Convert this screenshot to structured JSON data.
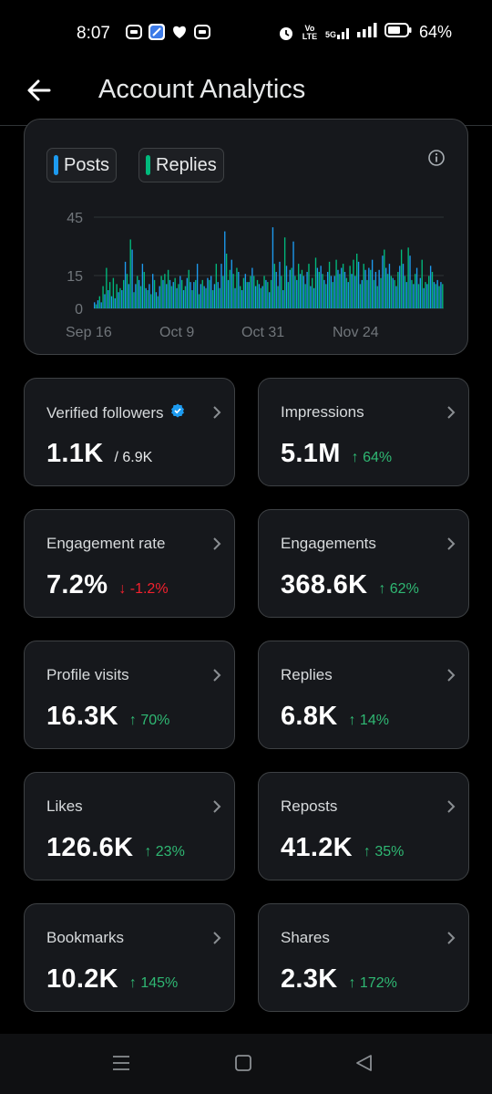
{
  "status_bar": {
    "time": "8:07",
    "battery": "64%",
    "left_icons": [
      "message-icon",
      "browser-icon",
      "heart-icon",
      "message-icon"
    ],
    "right_icons": [
      "alarm-icon",
      "volte-icon",
      "5g-signal-icon",
      "signal-icon",
      "battery-icon"
    ],
    "volte_label": "Vo LTE",
    "net_label": "5G"
  },
  "header": {
    "title": "Account Analytics"
  },
  "chart": {
    "legend": [
      {
        "label": "Posts",
        "color": "#1d9bf0"
      },
      {
        "label": "Replies",
        "color": "#00ba7c"
      }
    ]
  },
  "chart_data": {
    "type": "bar",
    "x_tick_labels": [
      "Sep 16",
      "Oct 9",
      "Oct 31",
      "Nov 24"
    ],
    "y_tick_labels": [
      "45",
      "15",
      "0"
    ],
    "ylim": [
      0,
      48
    ],
    "grid": true,
    "legend_position": "top-left",
    "series": [
      {
        "name": "Posts",
        "color": "#1d9bf0"
      },
      {
        "name": "Replies",
        "color": "#00ba7c"
      }
    ],
    "values": [
      3,
      2,
      4,
      6,
      3,
      11,
      7,
      20,
      9,
      13,
      6,
      15,
      5,
      12,
      8,
      10,
      9,
      14,
      23,
      17,
      12,
      34,
      29,
      8,
      12,
      16,
      14,
      11,
      22,
      18,
      10,
      9,
      12,
      7,
      17,
      14,
      8,
      6,
      11,
      16,
      14,
      17,
      12,
      19,
      14,
      11,
      13,
      15,
      10,
      12,
      16,
      14,
      9,
      11,
      15,
      19,
      13,
      9,
      13,
      14,
      22,
      7,
      12,
      14,
      11,
      10,
      15,
      14,
      16,
      9,
      12,
      22,
      13,
      10,
      22,
      16,
      38,
      27,
      14,
      19,
      24,
      17,
      10,
      20,
      18,
      11,
      9,
      15,
      17,
      13,
      13,
      16,
      20,
      16,
      11,
      14,
      12,
      10,
      11,
      16,
      14,
      13,
      8,
      14,
      40,
      22,
      18,
      11,
      23,
      16,
      9,
      35,
      21,
      13,
      19,
      20,
      33,
      16,
      14,
      22,
      17,
      19,
      16,
      12,
      18,
      22,
      11,
      15,
      10,
      25,
      20,
      18,
      21,
      17,
      14,
      12,
      18,
      23,
      16,
      13,
      16,
      24,
      19,
      17,
      20,
      22,
      18,
      15,
      13,
      21,
      17,
      24,
      16,
      27,
      23,
      12,
      14,
      22,
      19,
      14,
      20,
      19,
      24,
      14,
      18,
      11,
      19,
      15,
      26,
      29,
      20,
      17,
      22,
      16,
      15,
      14,
      11,
      18,
      21,
      29,
      22,
      16,
      13,
      30,
      26,
      14,
      12,
      17,
      20,
      12,
      15,
      24,
      10,
      13,
      12,
      16,
      21,
      18,
      13,
      12,
      14,
      11,
      13,
      12
    ]
  },
  "metrics": [
    {
      "label": "Verified followers",
      "value": "1.1K",
      "sub": "/ 6.9K",
      "change": "",
      "dir": "",
      "verified": true
    },
    {
      "label": "Impressions",
      "value": "5.1M",
      "sub": "",
      "change": "↑ 64%",
      "dir": "up"
    },
    {
      "label": "Engagement rate",
      "value": "7.2%",
      "sub": "",
      "change": "↓ -1.2%",
      "dir": "down"
    },
    {
      "label": "Engagements",
      "value": "368.6K",
      "sub": "",
      "change": "↑ 62%",
      "dir": "up"
    },
    {
      "label": "Profile visits",
      "value": "16.3K",
      "sub": "",
      "change": "↑ 70%",
      "dir": "up"
    },
    {
      "label": "Replies",
      "value": "6.8K",
      "sub": "",
      "change": "↑ 14%",
      "dir": "up"
    },
    {
      "label": "Likes",
      "value": "126.6K",
      "sub": "",
      "change": "↑ 23%",
      "dir": "up"
    },
    {
      "label": "Reposts",
      "value": "41.2K",
      "sub": "",
      "change": "↑ 35%",
      "dir": "up"
    },
    {
      "label": "Bookmarks",
      "value": "10.2K",
      "sub": "",
      "change": "↑ 145%",
      "dir": "up"
    },
    {
      "label": "Shares",
      "value": "2.3K",
      "sub": "",
      "change": "↑ 172%",
      "dir": "up"
    }
  ],
  "nav": [
    "menu-icon",
    "home-icon",
    "back-triangle-icon"
  ]
}
